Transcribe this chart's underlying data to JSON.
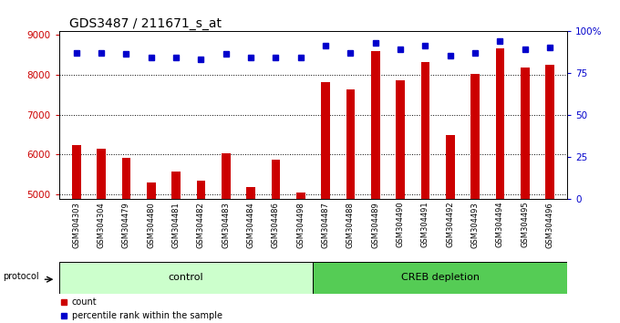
{
  "title": "GDS3487 / 211671_s_at",
  "categories": [
    "GSM304303",
    "GSM304304",
    "GSM304479",
    "GSM304480",
    "GSM304481",
    "GSM304482",
    "GSM304483",
    "GSM304484",
    "GSM304486",
    "GSM304498",
    "GSM304487",
    "GSM304488",
    "GSM304489",
    "GSM304490",
    "GSM304491",
    "GSM304492",
    "GSM304493",
    "GSM304494",
    "GSM304495",
    "GSM304496"
  ],
  "bar_values": [
    6230,
    6150,
    5930,
    5300,
    5570,
    5360,
    6030,
    5180,
    5870,
    5060,
    7820,
    7620,
    8580,
    7870,
    8310,
    6490,
    8020,
    8650,
    8170,
    8250
  ],
  "percentile_values": [
    87,
    87,
    86,
    84,
    84,
    83,
    86,
    84,
    84,
    84,
    91,
    87,
    93,
    89,
    91,
    85,
    87,
    94,
    89,
    90
  ],
  "bar_color": "#CC0000",
  "dot_color": "#0000CC",
  "ylim_left": [
    4900,
    9100
  ],
  "ylim_right": [
    0,
    100
  ],
  "yticks_left": [
    5000,
    6000,
    7000,
    8000,
    9000
  ],
  "yticks_right": [
    0,
    25,
    50,
    75,
    100
  ],
  "control_count": 10,
  "creb_count": 10,
  "control_label": "control",
  "creb_label": "CREB depletion",
  "protocol_label": "protocol",
  "legend_bar_label": "count",
  "legend_dot_label": "percentile rank within the sample",
  "bg_color": "#ffffff",
  "xtick_bg": "#d0d0d0",
  "control_bg": "#ccffcc",
  "creb_bg": "#55cc55",
  "bar_axis_color": "#CC0000",
  "pct_axis_color": "#0000CC",
  "title_fontsize": 10,
  "tick_fontsize": 7.5,
  "label_fontsize": 7,
  "bar_width": 0.35
}
